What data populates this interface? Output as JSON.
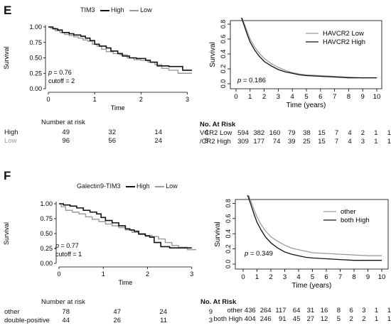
{
  "panels": [
    {
      "id": "E",
      "label": "E",
      "left": {
        "legend_title": "TIM3",
        "series_labels": [
          "High",
          "Low"
        ],
        "xticks": [
          "0",
          "1",
          "2",
          "3"
        ],
        "yticks": [
          "0.00",
          "0.25",
          "0.50",
          "0.75",
          "1.00"
        ],
        "xlabel": "Time",
        "ylabel": "Survival",
        "pvalue": "p = 0.76",
        "cutoff": "cutoff = 2",
        "risk_title": "Number at risk",
        "risk_rows": [
          {
            "group": "High",
            "values": [
              "49",
              "32",
              "14",
              "4"
            ]
          },
          {
            "group": "Low",
            "values": [
              "96",
              "56",
              "24",
              "8"
            ]
          }
        ]
      },
      "right": {
        "legend": [
          "HAVCR2 Low",
          "HAVCR2 High"
        ],
        "xticks": [
          "0",
          "1",
          "2",
          "3",
          "4",
          "5",
          "6",
          "7",
          "8",
          "9",
          "10"
        ],
        "yticks": [
          "0.0",
          "0.2",
          "0.4",
          "0.6",
          "0.8"
        ],
        "xlabel": "Time (years)",
        "ylabel": "Survival",
        "pvalue": "p = 0.186",
        "risk_title": "No. At Risk",
        "risk_rows": [
          {
            "group": "VCR2 Low",
            "values": [
              "594",
              "382",
              "160",
              "79",
              "38",
              "15",
              "7",
              "4",
              "2",
              "1",
              "1"
            ]
          },
          {
            "group": "/CR2 High",
            "values": [
              "309",
              "177",
              "74",
              "39",
              "25",
              "15",
              "7",
              "4",
              "3",
              "1",
              "1"
            ]
          }
        ]
      }
    },
    {
      "id": "F",
      "label": "F",
      "left": {
        "legend_title": "Galectin9-TIM3",
        "series_labels": [
          "High",
          "Low"
        ],
        "xticks": [
          "0",
          "1",
          "2",
          "3"
        ],
        "yticks": [
          "0.00",
          "0.25",
          "0.50",
          "0.75",
          "1.00"
        ],
        "xlabel": "Time",
        "ylabel": "Survival",
        "pvalue": "p = 0.77",
        "cutoff": "cutoff = 1",
        "risk_title": "Number at risk",
        "risk_rows": [
          {
            "group": "other",
            "values": [
              "78",
              "47",
              "24",
              "9"
            ]
          },
          {
            "group": "double-positive",
            "values": [
              "44",
              "26",
              "11",
              "3"
            ]
          }
        ]
      },
      "right": {
        "legend": [
          "other",
          "both High"
        ],
        "xticks": [
          "0",
          "1",
          "2",
          "3",
          "4",
          "5",
          "6",
          "7",
          "8",
          "9",
          "10"
        ],
        "yticks": [
          "0.0",
          "0.2",
          "0.4",
          "0.6",
          "0.8"
        ],
        "xlabel": "Time (years)",
        "ylabel": "Survival",
        "pvalue": "p = 0.349",
        "risk_title": "No. At Risk",
        "risk_rows": [
          {
            "group": "other 436",
            "values": [
              "264",
              "117",
              "64",
              "31",
              "16",
              "8",
              "6",
              "3",
              "1",
              "1"
            ]
          },
          {
            "group": "both High 404",
            "values": [
              "246",
              "91",
              "45",
              "27",
              "12",
              "5",
              "2",
              "2",
              "1",
              "1"
            ]
          }
        ]
      }
    }
  ],
  "colors": {
    "high": "#111111",
    "low": "#9a9a9a"
  },
  "chart_data": [
    {
      "type": "line",
      "ylabel": "Survival",
      "xlabel": "Time",
      "xlim": [
        0,
        3.1
      ],
      "ylim": [
        0,
        1
      ],
      "series": [
        {
          "name": "High",
          "step": true,
          "x": [
            0,
            0.1,
            0.2,
            0.3,
            0.45,
            0.55,
            0.7,
            0.8,
            0.9,
            1.0,
            1.1,
            1.25,
            1.35,
            1.5,
            1.6,
            1.75,
            1.9,
            2.0,
            2.1,
            2.2,
            2.35,
            2.5,
            2.6,
            2.9,
            3.1
          ],
          "y": [
            1.0,
            0.97,
            0.95,
            0.91,
            0.89,
            0.87,
            0.85,
            0.82,
            0.78,
            0.72,
            0.69,
            0.66,
            0.61,
            0.57,
            0.53,
            0.5,
            0.49,
            0.49,
            0.46,
            0.43,
            0.37,
            0.37,
            0.36,
            0.3,
            0.3
          ]
        },
        {
          "name": "Low",
          "step": true,
          "x": [
            0,
            0.05,
            0.15,
            0.25,
            0.35,
            0.45,
            0.55,
            0.65,
            0.75,
            0.85,
            0.95,
            1.05,
            1.15,
            1.25,
            1.4,
            1.55,
            1.7,
            1.85,
            2.0,
            2.15,
            2.3,
            2.45,
            2.6,
            2.8,
            3.1
          ],
          "y": [
            1.0,
            0.98,
            0.94,
            0.91,
            0.88,
            0.86,
            0.84,
            0.82,
            0.79,
            0.77,
            0.72,
            0.69,
            0.64,
            0.6,
            0.57,
            0.55,
            0.5,
            0.47,
            0.46,
            0.43,
            0.39,
            0.33,
            0.3,
            0.25,
            0.25
          ]
        }
      ]
    },
    {
      "type": "line",
      "ylabel": "Survival",
      "xlabel": "Time (years)",
      "xlim": [
        0,
        10
      ],
      "ylim": [
        0,
        1
      ],
      "series": [
        {
          "name": "HAVCR2 Low",
          "x": [
            0,
            0.2,
            0.4,
            0.6,
            0.8,
            1.0,
            1.3,
            1.6,
            2.0,
            2.5,
            3.0,
            3.5,
            4.0,
            4.5,
            5.0,
            6.0,
            7.0,
            8.0,
            9.0,
            10.0
          ],
          "y": [
            1.0,
            0.97,
            0.9,
            0.8,
            0.7,
            0.6,
            0.5,
            0.42,
            0.34,
            0.27,
            0.22,
            0.18,
            0.15,
            0.13,
            0.12,
            0.11,
            0.1,
            0.09,
            0.08,
            0.08
          ]
        },
        {
          "name": "HAVCR2 High",
          "x": [
            0,
            0.2,
            0.4,
            0.6,
            0.8,
            1.0,
            1.3,
            1.6,
            2.0,
            2.5,
            3.0,
            3.5,
            4.0,
            4.5,
            5.0,
            6.0,
            7.0,
            8.0,
            9.0,
            10.0
          ],
          "y": [
            1.0,
            0.96,
            0.88,
            0.77,
            0.66,
            0.56,
            0.46,
            0.38,
            0.3,
            0.24,
            0.19,
            0.16,
            0.14,
            0.12,
            0.11,
            0.1,
            0.09,
            0.08,
            0.08,
            0.08
          ]
        }
      ]
    },
    {
      "type": "line",
      "ylabel": "Survival",
      "xlabel": "Time",
      "xlim": [
        0,
        3.1
      ],
      "ylim": [
        0,
        1
      ],
      "series": [
        {
          "name": "High",
          "step": true,
          "x": [
            0,
            0.1,
            0.25,
            0.4,
            0.55,
            0.7,
            0.85,
            0.95,
            1.05,
            1.2,
            1.35,
            1.5,
            1.6,
            1.7,
            1.8,
            1.95,
            2.05,
            2.15,
            2.3,
            2.5,
            2.7,
            3.0
          ],
          "y": [
            1.0,
            0.98,
            0.96,
            0.93,
            0.89,
            0.86,
            0.83,
            0.77,
            0.72,
            0.68,
            0.63,
            0.58,
            0.56,
            0.54,
            0.49,
            0.46,
            0.44,
            0.35,
            0.28,
            0.26,
            0.26,
            0.26
          ]
        },
        {
          "name": "Low",
          "step": true,
          "x": [
            0,
            0.05,
            0.15,
            0.3,
            0.45,
            0.6,
            0.75,
            0.9,
            1.05,
            1.2,
            1.35,
            1.5,
            1.65,
            1.8,
            1.95,
            2.1,
            2.25,
            2.4,
            2.55,
            2.7,
            2.9,
            3.1
          ],
          "y": [
            1.0,
            0.95,
            0.89,
            0.86,
            0.83,
            0.78,
            0.74,
            0.7,
            0.66,
            0.63,
            0.6,
            0.56,
            0.52,
            0.5,
            0.47,
            0.45,
            0.41,
            0.35,
            0.3,
            0.27,
            0.23,
            0.23
          ]
        }
      ]
    },
    {
      "type": "line",
      "ylabel": "Survival",
      "xlabel": "Time (years)",
      "xlim": [
        0,
        10
      ],
      "ylim": [
        0,
        1
      ],
      "series": [
        {
          "name": "other",
          "x": [
            0,
            0.2,
            0.4,
            0.6,
            0.8,
            1.0,
            1.3,
            1.6,
            2.0,
            2.5,
            3.0,
            3.5,
            4.0,
            4.5,
            5.0,
            6.0,
            7.0,
            8.0,
            9.0,
            10.0
          ],
          "y": [
            1.0,
            0.97,
            0.9,
            0.81,
            0.71,
            0.62,
            0.52,
            0.44,
            0.36,
            0.3,
            0.25,
            0.21,
            0.19,
            0.17,
            0.15,
            0.14,
            0.13,
            0.12,
            0.11,
            0.11
          ]
        },
        {
          "name": "both High",
          "x": [
            0,
            0.2,
            0.4,
            0.6,
            0.8,
            1.0,
            1.3,
            1.6,
            2.0,
            2.5,
            3.0,
            3.5,
            4.0,
            4.5,
            5.0,
            6.0,
            7.0,
            8.0,
            9.0,
            10.0
          ],
          "y": [
            1.0,
            0.96,
            0.87,
            0.76,
            0.65,
            0.55,
            0.45,
            0.36,
            0.28,
            0.21,
            0.16,
            0.13,
            0.11,
            0.09,
            0.08,
            0.07,
            0.06,
            0.05,
            0.05,
            0.05
          ]
        }
      ]
    }
  ]
}
